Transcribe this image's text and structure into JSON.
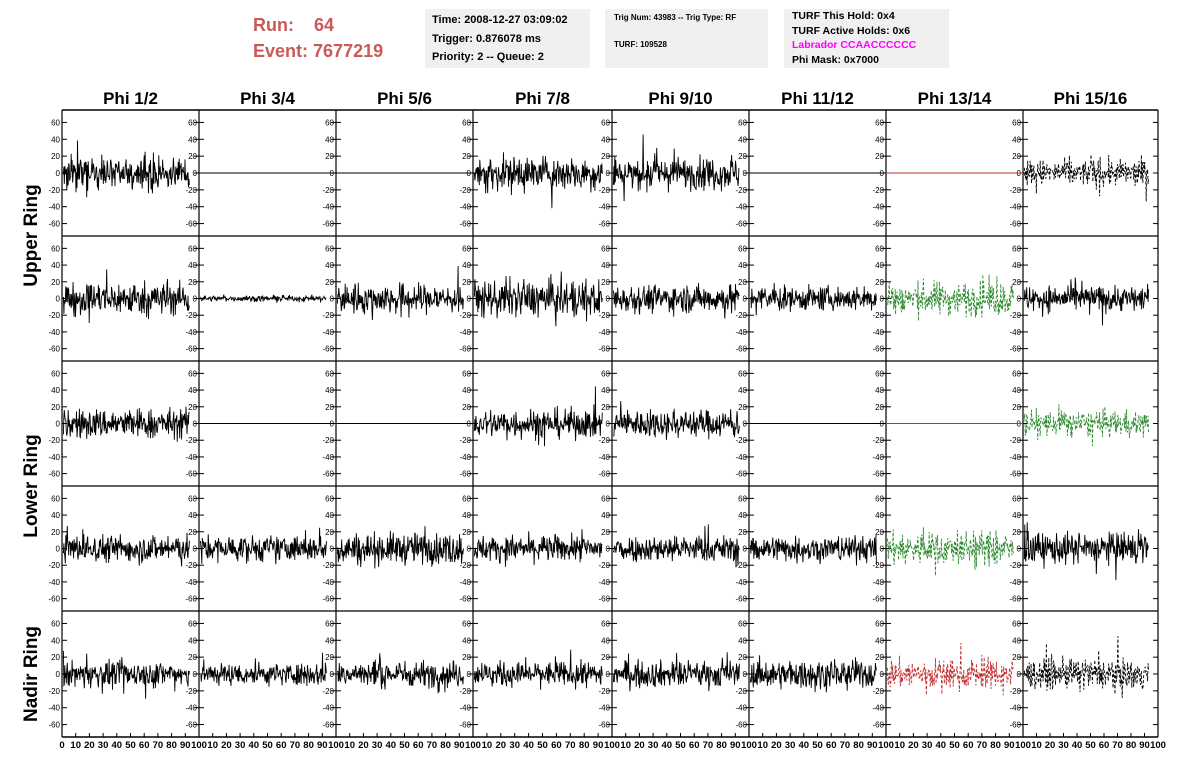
{
  "header": {
    "run_label": "Run:",
    "run_value": "64",
    "event_label": "Event:",
    "event_value": "7677219"
  },
  "info_time": {
    "time": "Time: 2008-12-27 03:09:02",
    "trigger": "Trigger: 0.876078 ms",
    "priority": "Priority: 2 -- Queue: 2"
  },
  "info_trig": {
    "trig": "Trig Num: 43983 -- Trig Type: RF",
    "turf": "TURF: 109528"
  },
  "info_turf": {
    "hold": "TURF This Hold: 0x4",
    "active": "TURF Active Holds: 0x6",
    "labrador": "Labrador CCAACCCCCC",
    "phimask": "Phi Mask: 0x7000"
  },
  "chart_data": {
    "type": "line",
    "columns": [
      "Phi 1/2",
      "Phi 3/4",
      "Phi 5/6",
      "Phi 7/8",
      "Phi 9/10",
      "Phi 11/12",
      "Phi 13/14",
      "Phi 15/16"
    ],
    "rows": [
      "Upper Ring",
      "Upper Ring",
      "Lower Ring",
      "Lower Ring",
      "Nadir Ring"
    ],
    "ylim": [
      -70,
      70
    ],
    "xlim": [
      0,
      100
    ],
    "yticks": [
      -60,
      -40,
      -20,
      0,
      20,
      40,
      60
    ],
    "xticks": [
      0,
      10,
      20,
      30,
      40,
      50,
      60,
      70,
      80,
      90,
      100
    ],
    "colors": {
      "black": "#000000",
      "green": "#2e8b2e",
      "red": "#c03030",
      "flat_red": "#c03030"
    },
    "panels": [
      [
        {
          "style": "solid",
          "color": "black",
          "amp": 17
        },
        {
          "style": "flat",
          "color": "black",
          "amp": 0
        },
        {
          "style": "flat",
          "color": "black",
          "amp": 0
        },
        {
          "style": "solid",
          "color": "black",
          "amp": 18
        },
        {
          "style": "solid",
          "color": "black",
          "amp": 17
        },
        {
          "style": "flat",
          "color": "black",
          "amp": 0
        },
        {
          "style": "flat",
          "color": "flat_red",
          "amp": 0
        },
        {
          "style": "dashed",
          "color": "black",
          "amp": 14
        }
      ],
      [
        {
          "style": "solid",
          "color": "black",
          "amp": 18
        },
        {
          "style": "solid",
          "color": "black",
          "amp": 3
        },
        {
          "style": "solid",
          "color": "black",
          "amp": 16
        },
        {
          "style": "solid",
          "color": "black",
          "amp": 20
        },
        {
          "style": "solid",
          "color": "black",
          "amp": 15
        },
        {
          "style": "solid",
          "color": "black",
          "amp": 13
        },
        {
          "style": "dashed",
          "color": "green",
          "amp": 18
        },
        {
          "style": "solid",
          "color": "black",
          "amp": 14
        }
      ],
      [
        {
          "style": "solid",
          "color": "black",
          "amp": 16
        },
        {
          "style": "flat",
          "color": "black",
          "amp": 0
        },
        {
          "style": "flat",
          "color": "black",
          "amp": 0
        },
        {
          "style": "solid",
          "color": "black",
          "amp": 16
        },
        {
          "style": "solid",
          "color": "black",
          "amp": 15
        },
        {
          "style": "flat",
          "color": "black",
          "amp": 0
        },
        {
          "style": "flat",
          "color": "flat_red",
          "amp": 0
        },
        {
          "style": "dashed",
          "color": "green",
          "amp": 14
        }
      ],
      [
        {
          "style": "solid",
          "color": "black",
          "amp": 15
        },
        {
          "style": "solid",
          "color": "black",
          "amp": 14
        },
        {
          "style": "solid",
          "color": "black",
          "amp": 17
        },
        {
          "style": "solid",
          "color": "black",
          "amp": 14
        },
        {
          "style": "solid",
          "color": "black",
          "amp": 14
        },
        {
          "style": "solid",
          "color": "black",
          "amp": 14
        },
        {
          "style": "dashed",
          "color": "green",
          "amp": 18
        },
        {
          "style": "solid",
          "color": "black",
          "amp": 17
        }
      ],
      [
        {
          "style": "solid",
          "color": "black",
          "amp": 14
        },
        {
          "style": "solid",
          "color": "black",
          "amp": 12
        },
        {
          "style": "solid",
          "color": "black",
          "amp": 14
        },
        {
          "style": "solid",
          "color": "black",
          "amp": 13
        },
        {
          "style": "solid",
          "color": "black",
          "amp": 14
        },
        {
          "style": "solid",
          "color": "black",
          "amp": 15
        },
        {
          "style": "dashed",
          "color": "red",
          "amp": 16
        },
        {
          "style": "dashed",
          "color": "black",
          "amp": 16
        }
      ]
    ]
  }
}
